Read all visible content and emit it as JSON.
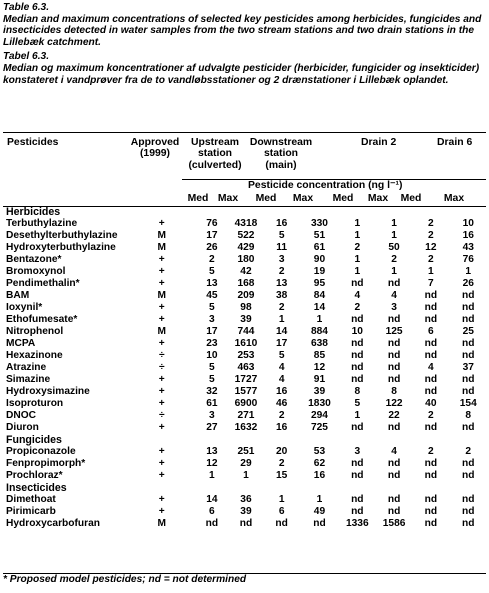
{
  "caption_en": {
    "title": "Table 6.3.",
    "text": "Median and maximum concentrations of selected key pesticides among herbicides, fungicides and insecticides detected in water samples from the two stream stations and two drain stations in the Lillebæk catchment."
  },
  "caption_da": {
    "title": "Tabel 6.3.",
    "text": "Median og maximum koncentrationer af udvalgte pesticider (herbicider, fungicider og insekticider) konstateret i vandprøver fra de to vandløbsstationer og 2 drænstationer i Lillebæk oplandet."
  },
  "header": {
    "pesticides": "Pesticides",
    "approved_line1": "Approved",
    "approved_line2": "(1999)",
    "upstream_line1": "Upstream",
    "upstream_line2": "station",
    "upstream_line3": "(culverted)",
    "downstream_line1": "Downstream",
    "downstream_line2": "station",
    "downstream_line3": "(main)",
    "drain2": "Drain 2",
    "drain6": "Drain 6",
    "concentration": "Pesticide concentration (ng l⁻¹)",
    "med": "Med",
    "max": "Max"
  },
  "rows": [
    {
      "type": "group",
      "name": "Herbicides"
    },
    {
      "type": "row",
      "name": "Terbuthylazine",
      "approved": "+",
      "v": [
        "76",
        "4318",
        "16",
        "330",
        "1",
        "1",
        "2",
        "10"
      ]
    },
    {
      "type": "row",
      "name": "Desethylterbuthylazine",
      "approved": "M",
      "v": [
        "17",
        "522",
        "5",
        "51",
        "1",
        "1",
        "2",
        "16"
      ]
    },
    {
      "type": "row",
      "name": "Hydroxyterbuthylazine",
      "approved": "M",
      "v": [
        "26",
        "429",
        "11",
        "61",
        "2",
        "50",
        "12",
        "43"
      ]
    },
    {
      "type": "row",
      "name": "Bentazone*",
      "approved": "+",
      "v": [
        "2",
        "180",
        "3",
        "90",
        "1",
        "2",
        "2",
        "76"
      ]
    },
    {
      "type": "row",
      "name": "Bromoxynol",
      "approved": "+",
      "v": [
        "5",
        "42",
        "2",
        "19",
        "1",
        "1",
        "1",
        "1"
      ]
    },
    {
      "type": "row",
      "name": "Pendimethalin*",
      "approved": "+",
      "v": [
        "13",
        "168",
        "13",
        "95",
        "nd",
        "nd",
        "7",
        "26"
      ]
    },
    {
      "type": "row",
      "name": "BAM",
      "approved": "M",
      "v": [
        "45",
        "209",
        "38",
        "84",
        "4",
        "4",
        "nd",
        "nd"
      ]
    },
    {
      "type": "row",
      "name": "Ioxynil*",
      "approved": "+",
      "v": [
        "5",
        "98",
        "2",
        "14",
        "2",
        "3",
        "nd",
        "nd"
      ]
    },
    {
      "type": "row",
      "name": "Ethofumesate*",
      "approved": "+",
      "v": [
        "3",
        "39",
        "1",
        "1",
        "nd",
        "nd",
        "nd",
        "nd"
      ]
    },
    {
      "type": "row",
      "name": "Nitrophenol",
      "approved": "M",
      "v": [
        "17",
        "744",
        "14",
        "884",
        "10",
        "125",
        "6",
        "25"
      ]
    },
    {
      "type": "row",
      "name": "MCPA",
      "approved": "+",
      "v": [
        "23",
        "1610",
        "17",
        "638",
        "nd",
        "nd",
        "nd",
        "nd"
      ]
    },
    {
      "type": "row",
      "name": "Hexazinone",
      "approved": "÷",
      "v": [
        "10",
        "253",
        "5",
        "85",
        "nd",
        "nd",
        "nd",
        "nd"
      ]
    },
    {
      "type": "row",
      "name": "Atrazine",
      "approved": "÷",
      "v": [
        "5",
        "463",
        "4",
        "12",
        "nd",
        "nd",
        "4",
        "37"
      ]
    },
    {
      "type": "row",
      "name": "Simazine",
      "approved": "+",
      "v": [
        "5",
        "1727",
        "4",
        "91",
        "nd",
        "nd",
        "nd",
        "nd"
      ]
    },
    {
      "type": "row",
      "name": "Hydroxysimazine",
      "approved": "+",
      "v": [
        "32",
        "1577",
        "16",
        "39",
        "8",
        "8",
        "nd",
        "nd"
      ]
    },
    {
      "type": "row",
      "name": "Isoproturon",
      "approved": "+",
      "v": [
        "61",
        "6900",
        "46",
        "1830",
        "5",
        "122",
        "40",
        "154"
      ]
    },
    {
      "type": "row",
      "name": "DNOC",
      "approved": "÷",
      "v": [
        "3",
        "271",
        "2",
        "294",
        "1",
        "22",
        "2",
        "8"
      ]
    },
    {
      "type": "row",
      "name": "Diuron",
      "approved": "+",
      "v": [
        "27",
        "1632",
        "16",
        "725",
        "nd",
        "nd",
        "nd",
        "nd"
      ]
    },
    {
      "type": "group",
      "name": "Fungicides"
    },
    {
      "type": "row",
      "name": "Propiconazole",
      "approved": "+",
      "v": [
        "13",
        "251",
        "20",
        "53",
        "3",
        "4",
        "2",
        "2"
      ]
    },
    {
      "type": "row",
      "name": "Fenpropimorph*",
      "approved": "+",
      "v": [
        "12",
        "29",
        "2",
        "62",
        "nd",
        "nd",
        "nd",
        "nd"
      ]
    },
    {
      "type": "row",
      "name": "Prochloraz*",
      "approved": "+",
      "v": [
        "1",
        "1",
        "15",
        "16",
        "nd",
        "nd",
        "nd",
        "nd"
      ]
    },
    {
      "type": "group",
      "name": "Insecticides"
    },
    {
      "type": "row",
      "name": "Dimethoat",
      "approved": "+",
      "v": [
        "14",
        "36",
        "1",
        "1",
        "nd",
        "nd",
        "nd",
        "nd"
      ]
    },
    {
      "type": "row",
      "name": "Pirimicarb",
      "approved": "+",
      "v": [
        "6",
        "39",
        "6",
        "49",
        "nd",
        "nd",
        "nd",
        "nd"
      ]
    },
    {
      "type": "row",
      "name": "Hydroxycarbofuran",
      "approved": "M",
      "v": [
        "nd",
        "nd",
        "nd",
        "nd",
        "1336",
        "1586",
        "nd",
        "nd"
      ]
    }
  ],
  "footnote": "* Proposed model pesticides; nd = not determined"
}
